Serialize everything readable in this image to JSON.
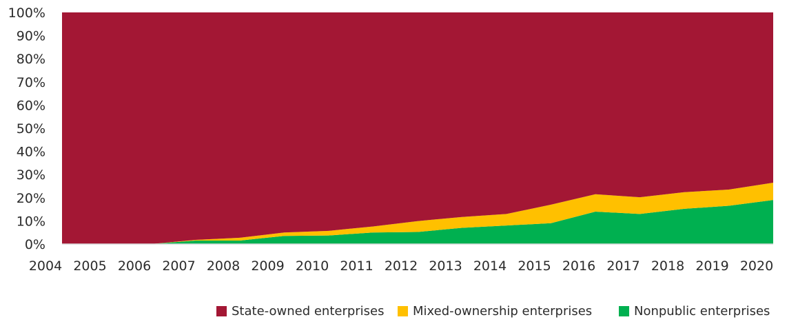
{
  "chart_data": {
    "type": "area",
    "stacked": true,
    "percent_axis": true,
    "ylim": [
      0,
      100
    ],
    "yticks": [
      "0%",
      "10%",
      "20%",
      "30%",
      "40%",
      "50%",
      "60%",
      "70%",
      "80%",
      "90%",
      "100%"
    ],
    "categories": [
      "2004",
      "2005",
      "2006",
      "2007",
      "2008",
      "2009",
      "2010",
      "2011",
      "2012",
      "2013",
      "2014",
      "2015",
      "2016",
      "2017",
      "2018",
      "2019",
      "2020"
    ],
    "series": [
      {
        "name": "Nonpublic enterprises",
        "color": "#00b050",
        "values": [
          0,
          0,
          0,
          1.5,
          1.5,
          3.5,
          3.7,
          5,
          5.2,
          7,
          8,
          9,
          14,
          13,
          15.2,
          16.5,
          19
        ]
      },
      {
        "name": "Mixed-ownership enterprises",
        "color": "#ffc000",
        "values": [
          0,
          0,
          0,
          0.3,
          1.2,
          1.5,
          2,
          2.6,
          4.7,
          4.7,
          5,
          8,
          7.5,
          7.2,
          7.2,
          7,
          7.5
        ]
      },
      {
        "name": "State-owned enterprises",
        "color": "#a31734",
        "values": [
          100,
          100,
          100,
          98.2,
          97.3,
          95,
          94.3,
          92.4,
          90.1,
          88.3,
          87,
          83,
          78.5,
          79.8,
          77.6,
          76.5,
          73.5
        ]
      }
    ],
    "legend": {
      "position": "bottom",
      "items": [
        {
          "label": "State-owned enterprises",
          "color": "#a31734"
        },
        {
          "label": "Mixed-ownership enterprises",
          "color": "#ffc000"
        },
        {
          "label": "Nonpublic enterprises",
          "color": "#00b050"
        }
      ]
    },
    "axis_color": "#d9d9d9"
  }
}
